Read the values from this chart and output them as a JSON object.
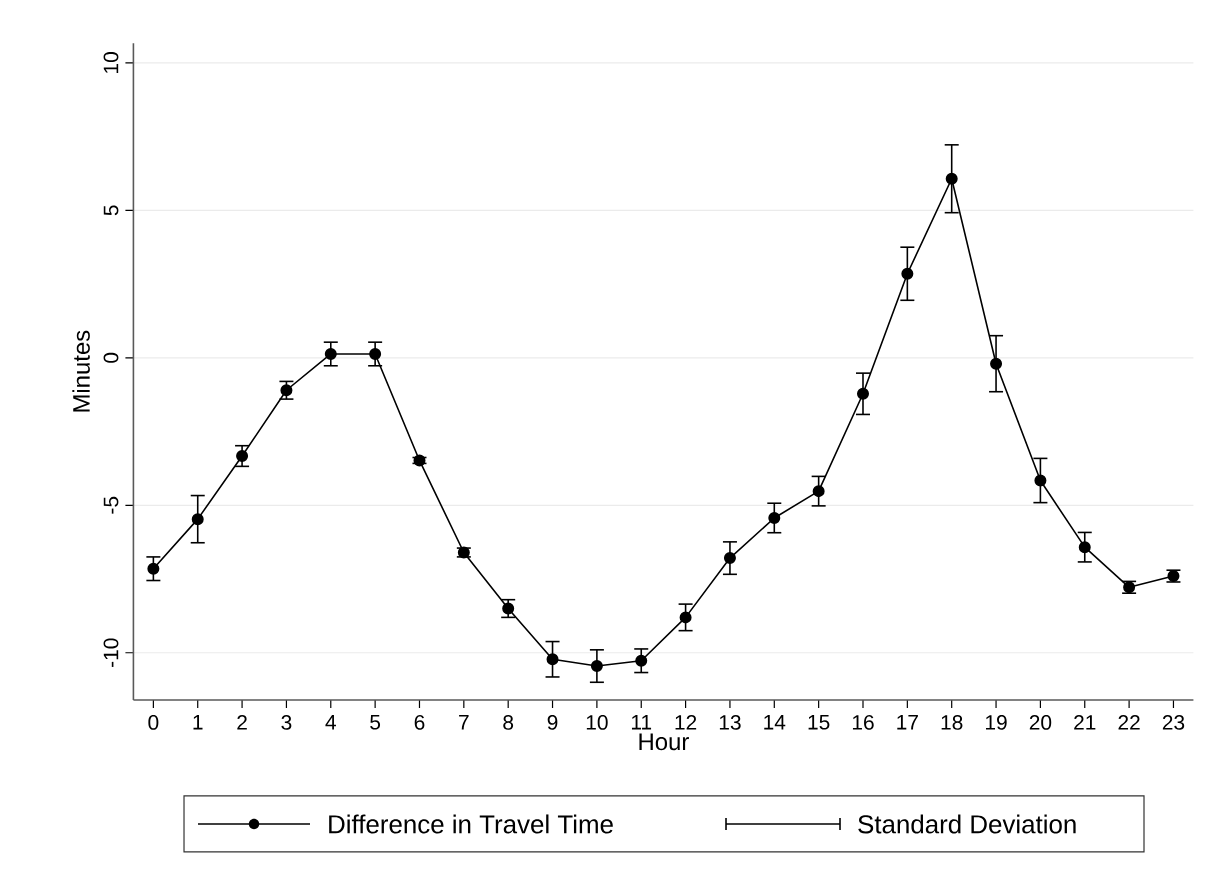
{
  "chart_data": {
    "type": "line",
    "xlabel": "Hour",
    "ylabel": "Minutes",
    "x": [
      0,
      1,
      2,
      3,
      4,
      5,
      6,
      7,
      8,
      9,
      10,
      11,
      12,
      13,
      14,
      15,
      16,
      17,
      18,
      19,
      20,
      21,
      22,
      23
    ],
    "series": [
      {
        "name": "Difference in Travel Time",
        "color": "#000000",
        "values": [
          -7.15,
          -5.47,
          -3.33,
          -1.1,
          0.13,
          0.13,
          -3.48,
          -6.6,
          -8.5,
          -10.22,
          -10.45,
          -10.27,
          -8.8,
          -6.79,
          -5.43,
          -4.52,
          -1.22,
          2.85,
          6.07,
          -0.2,
          -4.16,
          -6.42,
          -7.78,
          -7.4
        ],
        "errors": [
          0.4,
          0.8,
          0.35,
          0.3,
          0.4,
          0.4,
          0.1,
          0.15,
          0.3,
          0.6,
          0.55,
          0.4,
          0.45,
          0.55,
          0.5,
          0.5,
          0.7,
          0.9,
          1.15,
          0.95,
          0.75,
          0.5,
          0.2,
          0.2
        ]
      }
    ],
    "annotations": [
      "Standard Deviation"
    ],
    "xlim": [
      -0.45,
      23.45
    ],
    "ylim": [
      -11.6,
      10.66
    ],
    "xticks": [
      0,
      1,
      2,
      3,
      4,
      5,
      6,
      7,
      8,
      9,
      10,
      11,
      12,
      13,
      14,
      15,
      16,
      17,
      18,
      19,
      20,
      21,
      22,
      23
    ],
    "yticks": [
      -10,
      -5,
      0,
      5,
      10
    ],
    "grid": "y",
    "legend": "bottom",
    "marker": "circle",
    "line_style": "solid"
  }
}
